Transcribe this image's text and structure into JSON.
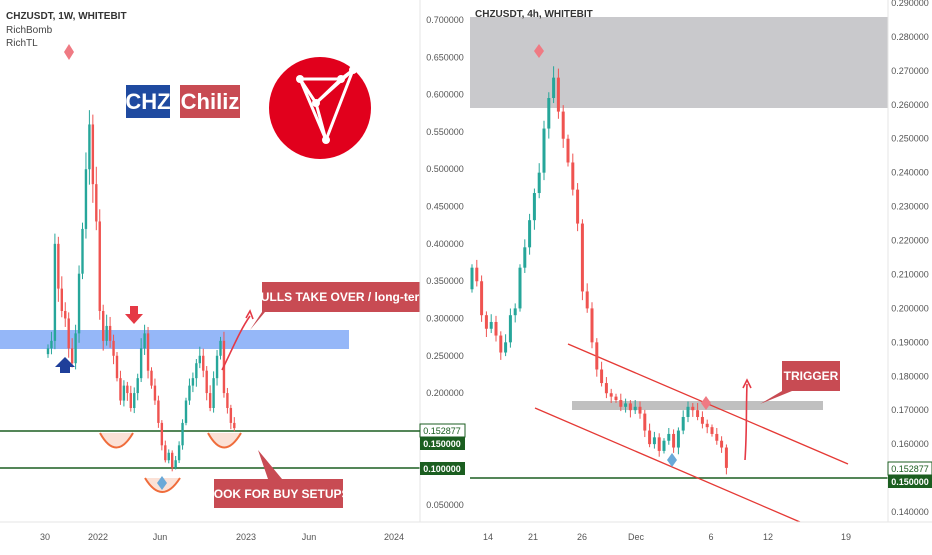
{
  "left_panel": {
    "title": "CHZUSDT, 1W, WHITEBIT",
    "indicators": [
      "RichBomb",
      "RichTL"
    ],
    "logo": {
      "icon": "chiliz-logo-icon",
      "color": "#e1001c",
      "ticker": "CHZ",
      "name": "Chiliz",
      "ticker_bg": "#1f4aa0",
      "name_bg": "#c84b53"
    },
    "annotations": {
      "bulls": "BULLS TAKE OVER / long-term",
      "buy": "LOOK FOR BUY SETUPS"
    },
    "price_labels": {
      "current": "0.152877",
      "level_high": "0.150000",
      "level_low": "0.100000"
    }
  },
  "right_panel": {
    "title": "CHZUSDT, 4h, WHITEBIT",
    "annotations": {
      "trigger": "TRIGGER"
    },
    "price_labels": {
      "current": "0.152877",
      "level": "0.150000"
    }
  },
  "colors": {
    "up": "#26a69a",
    "down": "#ef5350",
    "level": "#1b5e20",
    "zone_blue": "#8fb3f8",
    "zone_gray": "#bdbdbd",
    "channel": "#e53935"
  },
  "chart_data": [
    {
      "type": "candlestick",
      "title": "CHZUSDT, 1W, WHITEBIT",
      "x_ticks": [
        "30",
        "2022",
        "Jun",
        "2023",
        "Jun",
        "2024"
      ],
      "y_ticks": [
        "0.700000",
        "0.650000",
        "0.600000",
        "0.550000",
        "0.500000",
        "0.450000",
        "0.400000",
        "0.350000",
        "0.300000",
        "0.250000",
        "0.200000",
        "0.150000",
        "0.100000",
        "0.050000"
      ],
      "ylim": [
        0.02,
        0.72
      ],
      "resistance_zone": [
        0.26,
        0.285
      ],
      "support_levels": [
        0.15,
        0.1
      ],
      "current_price": 0.152877,
      "close_series": [
        0.26,
        0.27,
        0.4,
        0.34,
        0.31,
        0.3,
        0.26,
        0.24,
        0.28,
        0.36,
        0.42,
        0.5,
        0.56,
        0.48,
        0.43,
        0.31,
        0.27,
        0.29,
        0.27,
        0.25,
        0.22,
        0.19,
        0.21,
        0.2,
        0.18,
        0.2,
        0.22,
        0.26,
        0.28,
        0.23,
        0.21,
        0.19,
        0.16,
        0.13,
        0.11,
        0.12,
        0.1,
        0.11,
        0.13,
        0.16,
        0.19,
        0.21,
        0.22,
        0.24,
        0.25,
        0.23,
        0.2,
        0.18,
        0.22,
        0.25,
        0.27,
        0.2,
        0.18,
        0.16,
        0.153
      ]
    },
    {
      "type": "candlestick",
      "title": "CHZUSDT, 4h, WHITEBIT",
      "x_ticks": [
        "14",
        "21",
        "26",
        "Dec",
        "6",
        "12",
        "19"
      ],
      "y_ticks": [
        "0.290000",
        "0.280000",
        "0.270000",
        "0.260000",
        "0.250000",
        "0.240000",
        "0.230000",
        "0.220000",
        "0.210000",
        "0.200000",
        "0.190000",
        "0.180000",
        "0.170000",
        "0.160000",
        "0.150000",
        "0.140000"
      ],
      "ylim": [
        0.135,
        0.29
      ],
      "supply_zone": [
        0.259,
        0.285
      ],
      "resistance_zone": [
        0.17,
        0.172
      ],
      "support_level": 0.15,
      "current_price": 0.152877,
      "close_series": [
        0.212,
        0.208,
        0.198,
        0.194,
        0.196,
        0.192,
        0.187,
        0.19,
        0.198,
        0.2,
        0.212,
        0.218,
        0.226,
        0.234,
        0.24,
        0.253,
        0.262,
        0.268,
        0.258,
        0.25,
        0.243,
        0.235,
        0.225,
        0.205,
        0.2,
        0.19,
        0.182,
        0.178,
        0.175,
        0.174,
        0.173,
        0.171,
        0.172,
        0.17,
        0.171,
        0.169,
        0.164,
        0.16,
        0.162,
        0.158,
        0.161,
        0.163,
        0.159,
        0.164,
        0.168,
        0.171,
        0.17,
        0.168,
        0.166,
        0.165,
        0.163,
        0.161,
        0.159,
        0.153
      ]
    }
  ]
}
